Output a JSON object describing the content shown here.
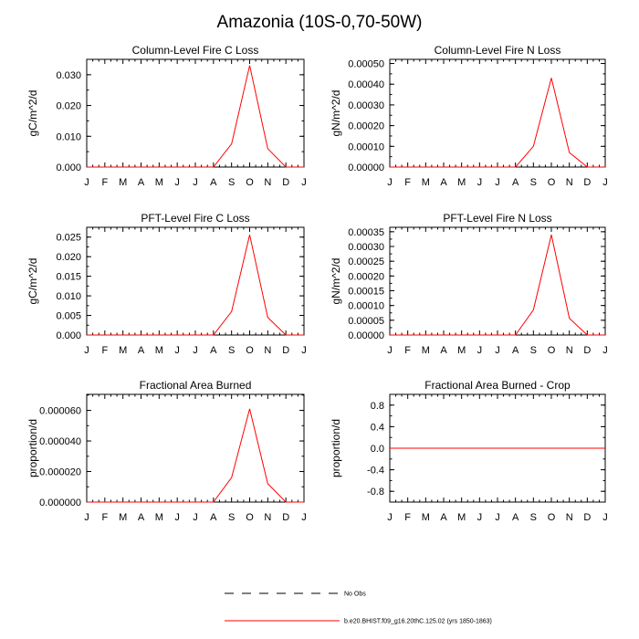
{
  "figure_title": "Amazonia (10S-0,70-50W)",
  "colors": {
    "series": "#ff0000",
    "axis": "#000000"
  },
  "legend": {
    "entries": [
      {
        "label": "No Obs",
        "style": "dashed",
        "color": "#000000"
      },
      {
        "label": "b.e20.BHIST.f09_g16.20thC.125.02 (yrs 1850-1863)",
        "style": "solid",
        "color": "#ff0000"
      }
    ]
  },
  "chart_data": [
    {
      "type": "line",
      "title": "Column-Level Fire C Loss",
      "ylabel": "gC/m^2/d",
      "categories": [
        "J",
        "F",
        "M",
        "A",
        "M",
        "J",
        "J",
        "A",
        "S",
        "O",
        "N",
        "D",
        "J"
      ],
      "series": [
        {
          "name": "b.e20.BHIST.f09_g16.20thC.125.02 (yrs 1850-1863)",
          "values": [
            0,
            0,
            0,
            0,
            0,
            0,
            0,
            0,
            0.0075,
            0.033,
            0.006,
            0,
            0
          ]
        }
      ],
      "ylim": [
        0,
        0.035
      ],
      "yticks": [
        0,
        0.01,
        0.02,
        0.03
      ],
      "ytick_labels": [
        "0.000",
        "0.010",
        "0.020",
        "0.030"
      ]
    },
    {
      "type": "line",
      "title": "Column-Level Fire N Loss",
      "ylabel": "gN/m^2/d",
      "categories": [
        "J",
        "F",
        "M",
        "A",
        "M",
        "J",
        "J",
        "A",
        "S",
        "O",
        "N",
        "D",
        "J"
      ],
      "series": [
        {
          "name": "b.e20.BHIST.f09_g16.20thC.125.02 (yrs 1850-1863)",
          "values": [
            0,
            0,
            0,
            0,
            0,
            0,
            0,
            0,
            0.0001,
            0.00043,
            7e-05,
            0,
            0
          ]
        }
      ],
      "ylim": [
        0,
        0.00052
      ],
      "yticks": [
        0,
        0.0001,
        0.0002,
        0.0003,
        0.0004,
        0.0005
      ],
      "ytick_labels": [
        "0.00000",
        "0.00010",
        "0.00020",
        "0.00030",
        "0.00040",
        "0.00050"
      ]
    },
    {
      "type": "line",
      "title": "PFT-Level Fire C Loss",
      "ylabel": "gC/m^2/d",
      "categories": [
        "J",
        "F",
        "M",
        "A",
        "M",
        "J",
        "J",
        "A",
        "S",
        "O",
        "N",
        "D",
        "J"
      ],
      "series": [
        {
          "name": "b.e20.BHIST.f09_g16.20thC.125.02 (yrs 1850-1863)",
          "values": [
            0,
            0,
            0,
            0,
            0,
            0,
            0,
            0,
            0.006,
            0.0256,
            0.0045,
            0,
            0
          ]
        }
      ],
      "ylim": [
        0,
        0.0275
      ],
      "yticks": [
        0,
        0.005,
        0.01,
        0.015,
        0.02,
        0.025
      ],
      "ytick_labels": [
        "0.000",
        "0.005",
        "0.010",
        "0.015",
        "0.020",
        "0.025"
      ]
    },
    {
      "type": "line",
      "title": "PFT-Level Fire N Loss",
      "ylabel": "gN/m^2/d",
      "categories": [
        "J",
        "F",
        "M",
        "A",
        "M",
        "J",
        "J",
        "A",
        "S",
        "O",
        "N",
        "D",
        "J"
      ],
      "series": [
        {
          "name": "b.e20.BHIST.f09_g16.20thC.125.02 (yrs 1850-1863)",
          "values": [
            0,
            0,
            0,
            0,
            0,
            0,
            0,
            0,
            8.5e-05,
            0.00034,
            5.7e-05,
            0,
            0
          ]
        }
      ],
      "ylim": [
        0,
        0.000365
      ],
      "yticks": [
        0,
        5e-05,
        0.0001,
        0.00015,
        0.0002,
        0.00025,
        0.0003,
        0.00035
      ],
      "ytick_labels": [
        "0.00000",
        "0.00005",
        "0.00010",
        "0.00015",
        "0.00020",
        "0.00025",
        "0.00030",
        "0.00035"
      ]
    },
    {
      "type": "line",
      "title": "Fractional Area Burned",
      "ylabel": "proportion/d",
      "categories": [
        "J",
        "F",
        "M",
        "A",
        "M",
        "J",
        "J",
        "A",
        "S",
        "O",
        "N",
        "D",
        "J"
      ],
      "series": [
        {
          "name": "b.e20.BHIST.f09_g16.20thC.125.02 (yrs 1850-1863)",
          "values": [
            0,
            0,
            0,
            0,
            0,
            0,
            0,
            0,
            1.6e-05,
            6.1e-05,
            1.2e-05,
            0,
            0
          ]
        }
      ],
      "ylim": [
        0,
        7.05e-05
      ],
      "yticks": [
        0,
        2e-05,
        4e-05,
        6e-05
      ],
      "ytick_labels": [
        "0.000000",
        "0.000020",
        "0.000040",
        "0.000060"
      ]
    },
    {
      "type": "line",
      "title": "Fractional Area Burned - Crop",
      "ylabel": "proportion/d",
      "categories": [
        "J",
        "F",
        "M",
        "A",
        "M",
        "J",
        "J",
        "A",
        "S",
        "O",
        "N",
        "D",
        "J"
      ],
      "series": [
        {
          "name": "b.e20.BHIST.f09_g16.20thC.125.02 (yrs 1850-1863)",
          "values": [
            0,
            0,
            0,
            0,
            0,
            0,
            0,
            0,
            0,
            0,
            0,
            0,
            0
          ]
        }
      ],
      "ylim": [
        -1.0,
        1.0
      ],
      "yticks": [
        -0.8,
        -0.4,
        0.0,
        0.4,
        0.8
      ],
      "ytick_labels": [
        "-0.8",
        "-0.4",
        "0.0",
        "0.4",
        "0.8"
      ]
    }
  ]
}
